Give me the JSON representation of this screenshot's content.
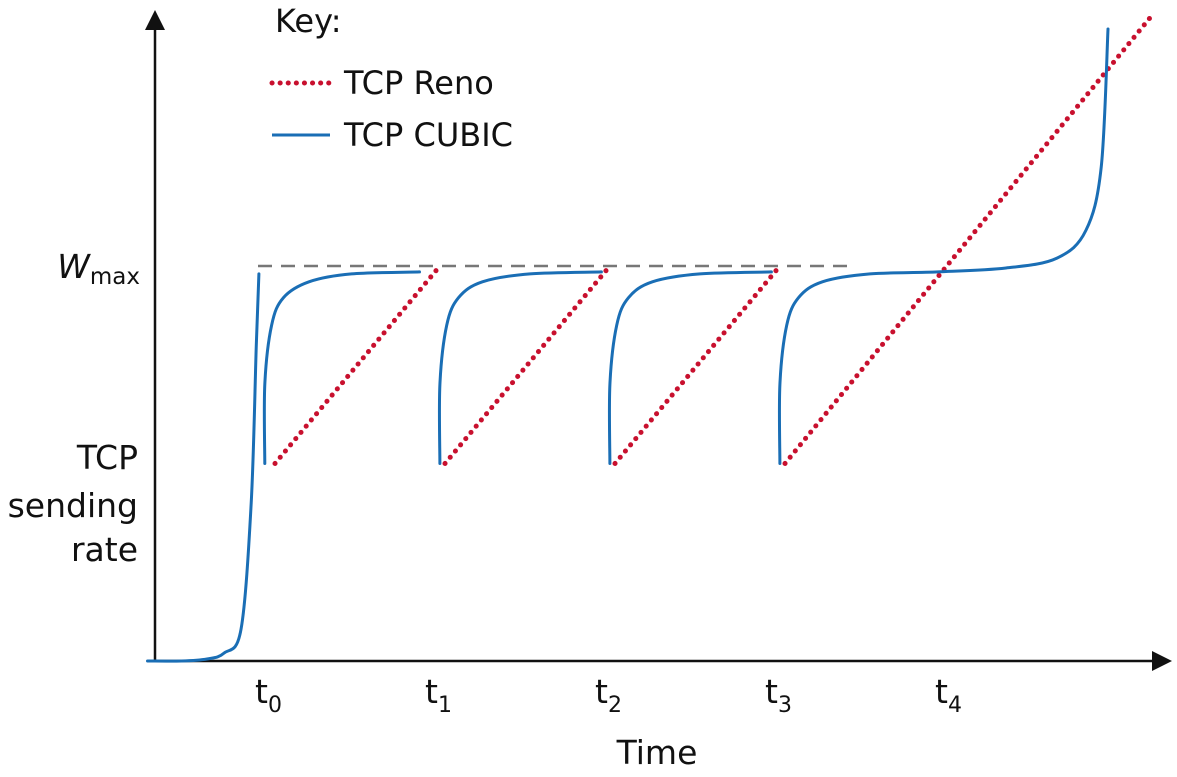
{
  "chart_data": {
    "type": "line",
    "title": "",
    "xlabel": "Time",
    "ylabel": [
      "TCP",
      "sending",
      "rate"
    ],
    "y_marker": {
      "main": "W",
      "sub": "max"
    },
    "x_ticks": [
      {
        "main": "t",
        "sub": "0",
        "x": 0
      },
      {
        "main": "t",
        "sub": "1",
        "x": 1
      },
      {
        "main": "t",
        "sub": "2",
        "x": 2
      },
      {
        "main": "t",
        "sub": "3",
        "x": 3
      },
      {
        "main": "t",
        "sub": "4",
        "x": 4
      }
    ],
    "xlim": [
      -0.75,
      5.15
    ],
    "ylim": [
      0,
      1.6
    ],
    "wmax_level": 1.0,
    "loss_level": 0.5,
    "legend": {
      "title": "Key:",
      "placement": "top-center",
      "entries": [
        {
          "name": "TCP Reno",
          "style": "dotted",
          "color": "#c8102e"
        },
        {
          "name": "TCP CUBIC",
          "style": "solid",
          "color": "#1a6eb5"
        }
      ]
    },
    "series": [
      {
        "name": "TCP Reno",
        "style": "dotted",
        "color": "#c8102e",
        "segments": [
          [
            [
              0.0,
              0.5
            ],
            [
              0.97,
              1.0
            ]
          ],
          [
            [
              1.0,
              0.5
            ],
            [
              1.97,
              1.0
            ]
          ],
          [
            [
              2.0,
              0.5
            ],
            [
              2.97,
              1.0
            ]
          ],
          [
            [
              3.0,
              0.5
            ],
            [
              5.15,
              1.63
            ]
          ]
        ]
      },
      {
        "name": "TCP CUBIC",
        "style": "solid",
        "color": "#1a6eb5",
        "segments": [
          [
            [
              -0.75,
              0.0
            ],
            [
              -0.55,
              0.0
            ],
            [
              -0.4,
              0.005
            ],
            [
              -0.3,
              0.02
            ],
            [
              -0.2,
              0.08
            ],
            [
              -0.14,
              0.4
            ],
            [
              -0.11,
              0.8
            ],
            [
              -0.095,
              0.98
            ]
          ],
          [
            [
              -0.06,
              0.5
            ],
            [
              -0.06,
              0.7
            ],
            [
              -0.02,
              0.85
            ],
            [
              0.05,
              0.92
            ],
            [
              0.2,
              0.96
            ],
            [
              0.45,
              0.98
            ],
            [
              0.85,
              0.985
            ]
          ],
          [
            [
              0.97,
              0.5
            ],
            [
              0.97,
              0.7
            ],
            [
              1.01,
              0.85
            ],
            [
              1.08,
              0.92
            ],
            [
              1.22,
              0.96
            ],
            [
              1.5,
              0.98
            ],
            [
              1.92,
              0.985
            ]
          ],
          [
            [
              1.97,
              0.5
            ],
            [
              1.97,
              0.7
            ],
            [
              2.01,
              0.85
            ],
            [
              2.08,
              0.92
            ],
            [
              2.22,
              0.96
            ],
            [
              2.5,
              0.98
            ],
            [
              2.92,
              0.985
            ]
          ],
          [
            [
              2.97,
              0.5
            ],
            [
              2.97,
              0.7
            ],
            [
              3.01,
              0.85
            ],
            [
              3.08,
              0.92
            ],
            [
              3.22,
              0.96
            ],
            [
              3.5,
              0.98
            ],
            [
              3.9,
              0.985
            ],
            [
              4.3,
              0.995
            ],
            [
              4.6,
              1.02
            ],
            [
              4.77,
              1.09
            ],
            [
              4.86,
              1.25
            ],
            [
              4.9,
              1.6
            ]
          ]
        ]
      }
    ],
    "grid": false,
    "colors": {
      "axis": "#111111",
      "wmax_line": "#777777"
    }
  }
}
